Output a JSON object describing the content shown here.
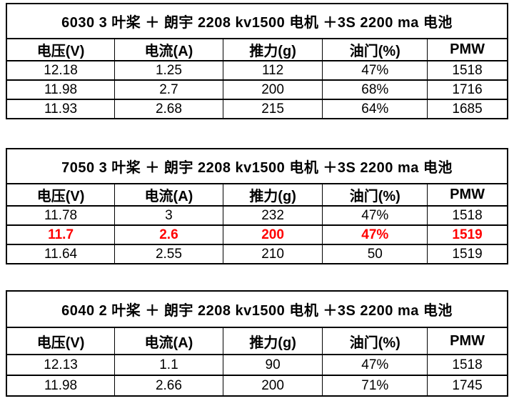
{
  "colors": {
    "background": "#ffffff",
    "border": "#000000",
    "text": "#000000",
    "highlight_text": "#ff0000"
  },
  "tables": [
    {
      "title": "6030 3 叶桨 ＋ 朗宇 2208 kv1500 电机 ＋3S 2200 ma 电池",
      "headers": [
        "电压(V)",
        "电流(A)",
        "推力(g)",
        "油门(%)",
        "PMW"
      ],
      "rows": [
        {
          "highlight": false,
          "cells": [
            "12.18",
            "1.25",
            "112",
            "47%",
            "1518"
          ]
        },
        {
          "highlight": false,
          "cells": [
            "11.98",
            "2.7",
            "200",
            "68%",
            "1716"
          ]
        },
        {
          "highlight": false,
          "cells": [
            "11.93",
            "2.68",
            "215",
            "64%",
            "1685"
          ]
        }
      ]
    },
    {
      "title": "7050 3 叶桨 ＋ 朗宇 2208 kv1500 电机 ＋3S 2200 ma 电池",
      "headers": [
        "电压(V)",
        "电流(A)",
        "推力(g)",
        "油门(%)",
        "PMW"
      ],
      "rows": [
        {
          "highlight": false,
          "cells": [
            "11.78",
            "3",
            "232",
            "47%",
            "1518"
          ]
        },
        {
          "highlight": true,
          "cells": [
            "11.7",
            "2.6",
            "200",
            "47%",
            "1519"
          ]
        },
        {
          "highlight": false,
          "cells": [
            "11.64",
            "2.55",
            "210",
            "50",
            "1519"
          ]
        }
      ]
    },
    {
      "title": "6040 2 叶桨 ＋ 朗宇 2208 kv1500 电机 ＋3S 2200 ma 电池",
      "headers": [
        "电压(V)",
        "电流(A)",
        "推力(g)",
        "油门(%)",
        "PMW"
      ],
      "rows": [
        {
          "highlight": false,
          "cells": [
            "12.13",
            "1.1",
            "90",
            "47%",
            "1518"
          ]
        },
        {
          "highlight": false,
          "cells": [
            "11.98",
            "2.66",
            "200",
            "71%",
            "1745"
          ]
        }
      ]
    }
  ]
}
